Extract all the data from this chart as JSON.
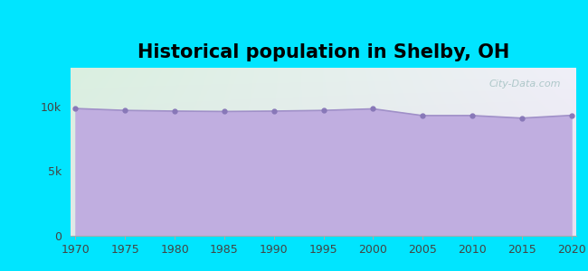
{
  "title": "Historical population in Shelby, OH",
  "years": [
    1970,
    1975,
    1980,
    1985,
    1990,
    1995,
    2000,
    2005,
    2010,
    2015,
    2020
  ],
  "population": [
    9847,
    9700,
    9646,
    9617,
    9646,
    9700,
    9821,
    9300,
    9303,
    9103,
    9317
  ],
  "line_color": "#a090c8",
  "fill_color": "#c0aee0",
  "fill_alpha": 1.0,
  "marker_color": "#8878b8",
  "bg_outer": "#00e5ff",
  "bg_plot_top_left": "#daf0e0",
  "bg_plot_bottom_right": "#e8e0f0",
  "title_fontsize": 15,
  "tick_fontsize": 9,
  "ylim": [
    0,
    13000
  ],
  "yticks": [
    0,
    5000,
    10000
  ],
  "ytick_labels": [
    "0",
    "5k",
    "10k"
  ],
  "watermark": "City-Data.com"
}
